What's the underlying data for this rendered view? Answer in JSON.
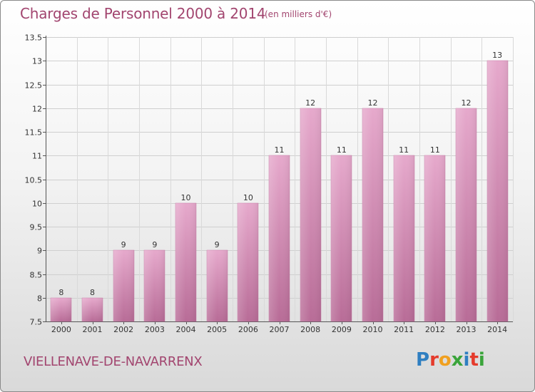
{
  "header": {
    "title": "Charges de Personnel 2000 à 2014",
    "subtitle": "(en milliers d'€)"
  },
  "footer": {
    "place": "VIELLENAVE-DE-NAVARRENX",
    "logo_text": "Proxiti",
    "logo_colors": [
      "#2f7fc1",
      "#e53b2c",
      "#f0a020",
      "#3aa43a",
      "#2f7fc1",
      "#e53b2c",
      "#3aa43a"
    ]
  },
  "chart_data": {
    "type": "bar",
    "categories": [
      "2000",
      "2001",
      "2002",
      "2003",
      "2004",
      "2005",
      "2006",
      "2007",
      "2008",
      "2009",
      "2010",
      "2011",
      "2012",
      "2013",
      "2014"
    ],
    "values": [
      8,
      8,
      9,
      9,
      10,
      9,
      10,
      11,
      12,
      11,
      12,
      11,
      11,
      12,
      13
    ],
    "value_labels": [
      "8",
      "8",
      "9",
      "9",
      "10",
      "9",
      "10",
      "11",
      "12",
      "11",
      "12",
      "11",
      "11",
      "12",
      "13"
    ],
    "ylim": [
      7.5,
      13.5
    ],
    "yticks": [
      7.5,
      8,
      8.5,
      9,
      9.5,
      10,
      10.5,
      11,
      11.5,
      12,
      12.5,
      13,
      13.5
    ],
    "ytick_labels": [
      "7.5",
      "8",
      "8.5",
      "9",
      "9.5",
      "10",
      "10.5",
      "11",
      "11.5",
      "12",
      "12.5",
      "13",
      "13.5"
    ],
    "grid": true,
    "bar_color": "#cf7fab",
    "xlabel": "",
    "ylabel": ""
  }
}
